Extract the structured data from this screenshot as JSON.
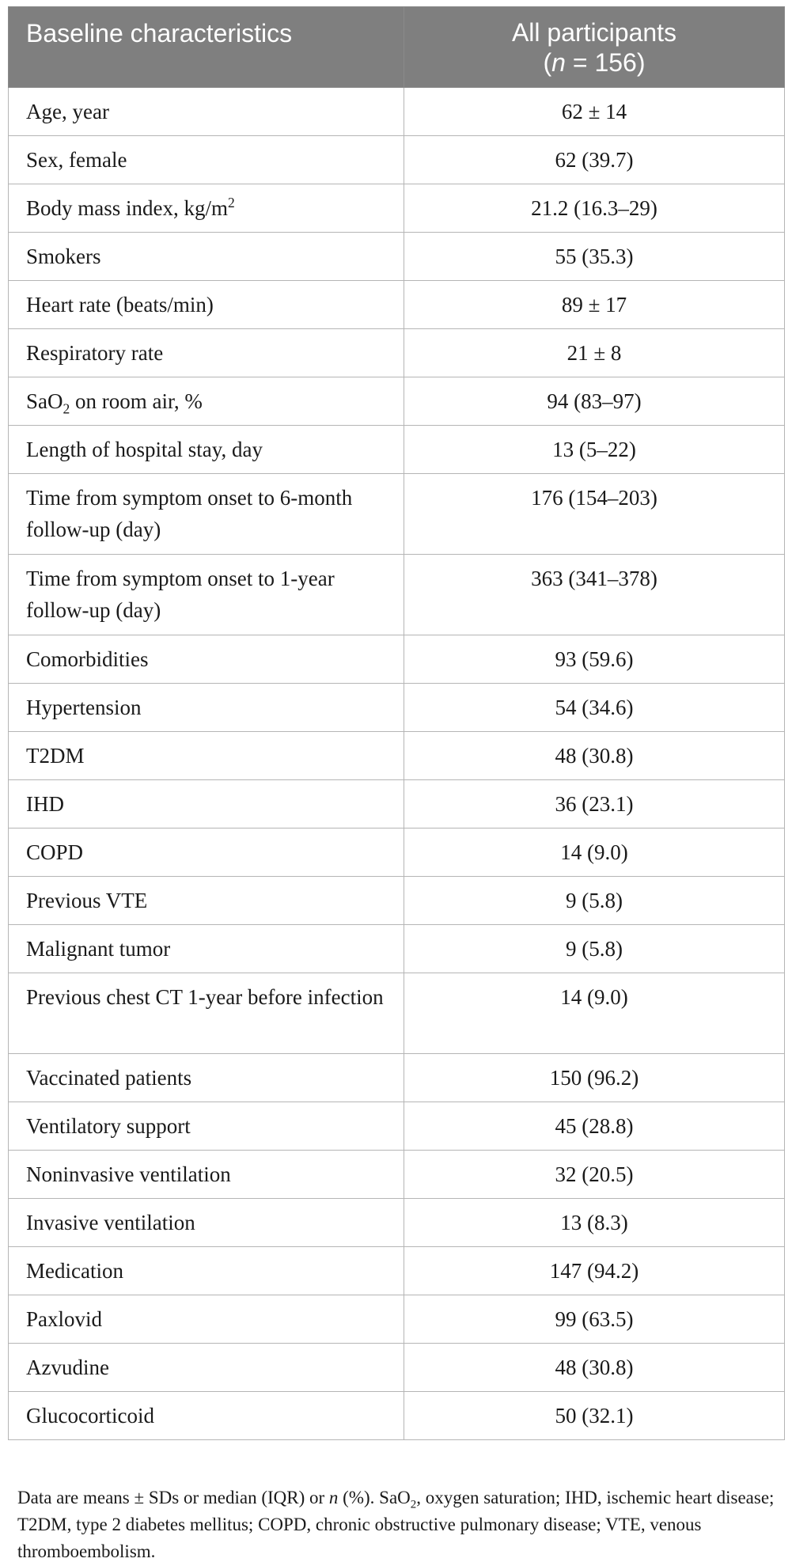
{
  "table": {
    "header": {
      "col1": "Baseline characteristics",
      "col2_line1": "All participants",
      "col2_n": "n",
      "col2_rest": " = 156)"
    },
    "rows": [
      {
        "label": "Age, year",
        "value": "62 ± 14"
      },
      {
        "label": "Sex, female",
        "value": "62 (39.7)"
      },
      {
        "label": "Body mass index, kg/m",
        "label_sup": "2",
        "value": "21.2 (16.3–29)"
      },
      {
        "label": "Smokers",
        "value": "55 (35.3)"
      },
      {
        "label": "Heart rate (beats/min)",
        "value": "89 ± 17"
      },
      {
        "label": "Respiratory rate",
        "value": "21 ± 8"
      },
      {
        "label": "SaO",
        "label_sub": "2",
        "label_rest": " on room air, %",
        "value": "94 (83–97)"
      },
      {
        "label": "Length of hospital stay, day",
        "value": "13 (5–22)"
      },
      {
        "label": "Time from symptom onset to 6-month follow-up (day)",
        "value": "176 (154–203)"
      },
      {
        "label": "Time from symptom onset to 1-year follow-up (day)",
        "value": "363 (341–378)"
      },
      {
        "label": "Comorbidities",
        "value": "93 (59.6)"
      },
      {
        "label": "Hypertension",
        "value": "54 (34.6)"
      },
      {
        "label": "T2DM",
        "value": "48 (30.8)"
      },
      {
        "label": "IHD",
        "value": "36 (23.1)"
      },
      {
        "label": "COPD",
        "value": "14 (9.0)"
      },
      {
        "label": "Previous VTE",
        "value": "9 (5.8)"
      },
      {
        "label": "Malignant tumor",
        "value": "9 (5.8)"
      },
      {
        "label": "Previous chest CT 1-year before infection",
        "value": "14 (9.0)"
      },
      {
        "label": "Vaccinated patients",
        "value": "150 (96.2)"
      },
      {
        "label": "Ventilatory support",
        "value": "45 (28.8)"
      },
      {
        "label": "Noninvasive ventilation",
        "value": "32 (20.5)"
      },
      {
        "label": "Invasive ventilation",
        "value": "13 (8.3)"
      },
      {
        "label": "Medication",
        "value": "147 (94.2)"
      },
      {
        "label": "Paxlovid",
        "value": "99 (63.5)"
      },
      {
        "label": "Azvudine",
        "value": "48 (30.8)"
      },
      {
        "label": "Glucocorticoid",
        "value": "50 (32.1)"
      }
    ]
  },
  "footnote": {
    "part1": "Data are means ± SDs or median (IQR) or ",
    "n": "n",
    "part2": " (%). SaO",
    "sub": "2",
    "part3": ", oxygen saturation; IHD, ischemic heart disease; T2DM, type 2 diabetes mellitus; COPD, chronic obstructive pulmonary disease; VTE, venous thromboembolism."
  }
}
